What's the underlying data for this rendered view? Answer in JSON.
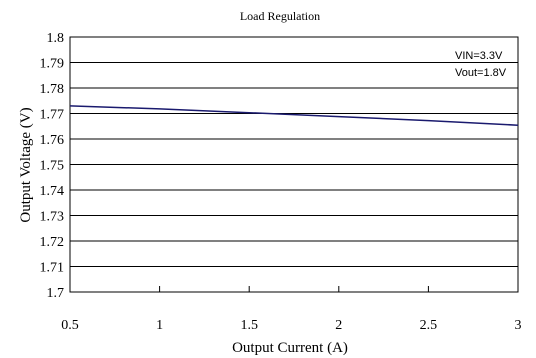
{
  "chart_data": {
    "type": "line",
    "title": "Load Regulation",
    "xlabel": "Output Current (A)",
    "ylabel": "Output Voltage (V)",
    "xlim": [
      0.5,
      3
    ],
    "ylim": [
      1.7,
      1.8
    ],
    "x_ticks": [
      "0.5",
      "1",
      "1.5",
      "2",
      "2.5",
      "3"
    ],
    "y_ticks": [
      "1.8",
      "1.79",
      "1.78",
      "1.77",
      "1.76",
      "1.75",
      "1.74",
      "1.73",
      "1.72",
      "1.71",
      "1.7"
    ],
    "grid": "horizontal",
    "annotations": [
      "VIN=3.3V",
      "Vout=1.8V"
    ],
    "series": [
      {
        "color": "#1a1a6e",
        "x": [
          0.5,
          1.0,
          1.5,
          2.0,
          2.5,
          3.0
        ],
        "y": [
          1.773,
          1.7718,
          1.7703,
          1.7688,
          1.7672,
          1.7654
        ]
      }
    ]
  }
}
